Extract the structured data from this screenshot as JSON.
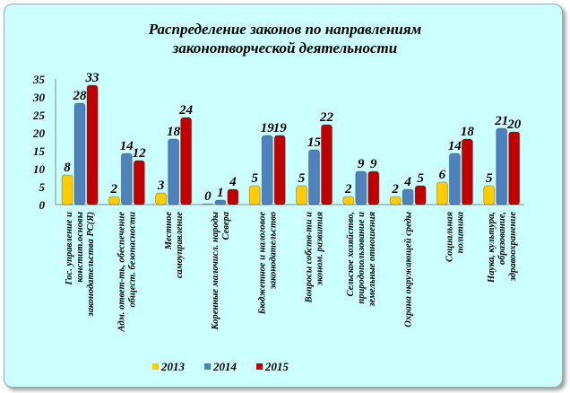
{
  "chart_data": {
    "type": "bar",
    "title": [
      "Распределение законов по направлениям",
      "законотворческой деятельности"
    ],
    "categories": [
      [
        "Гос. управление и",
        "констит.основы",
        "законодательства РС(Я)"
      ],
      [
        "Адм. ответ-ть, обеспечение",
        "общест. безопасности"
      ],
      [
        "Местное",
        "самоуправление"
      ],
      [
        "Коренные малочисл. народы",
        "Севера"
      ],
      [
        "Бюджетное и налоговое",
        "законодательство"
      ],
      [
        "Вопросы собств-ти и",
        "эконом. развития"
      ],
      [
        "Сельское хозяйство,",
        "природопользование и",
        "земельные отношения"
      ],
      [
        "Охрана окружающей среды"
      ],
      [
        "Социальная",
        "политика"
      ],
      [
        "Наука, культура,",
        "образование,",
        "здравоохранение"
      ]
    ],
    "series": [
      {
        "name": "2013",
        "color": "#ffcc00",
        "values": [
          8,
          2,
          3,
          0,
          5,
          5,
          2,
          2,
          6,
          5
        ]
      },
      {
        "name": "2014",
        "color": "#4f81bd",
        "values": [
          28,
          14,
          18,
          1,
          19,
          15,
          9,
          4,
          14,
          21
        ]
      },
      {
        "name": "2015",
        "color": "#c00000",
        "values": [
          33,
          12,
          24,
          4,
          19,
          22,
          9,
          5,
          18,
          20
        ]
      }
    ],
    "yticks": [
      0,
      5,
      10,
      15,
      20,
      25,
      30,
      35
    ],
    "ylim": [
      0,
      35
    ],
    "legend": "bottom",
    "grid": false
  }
}
